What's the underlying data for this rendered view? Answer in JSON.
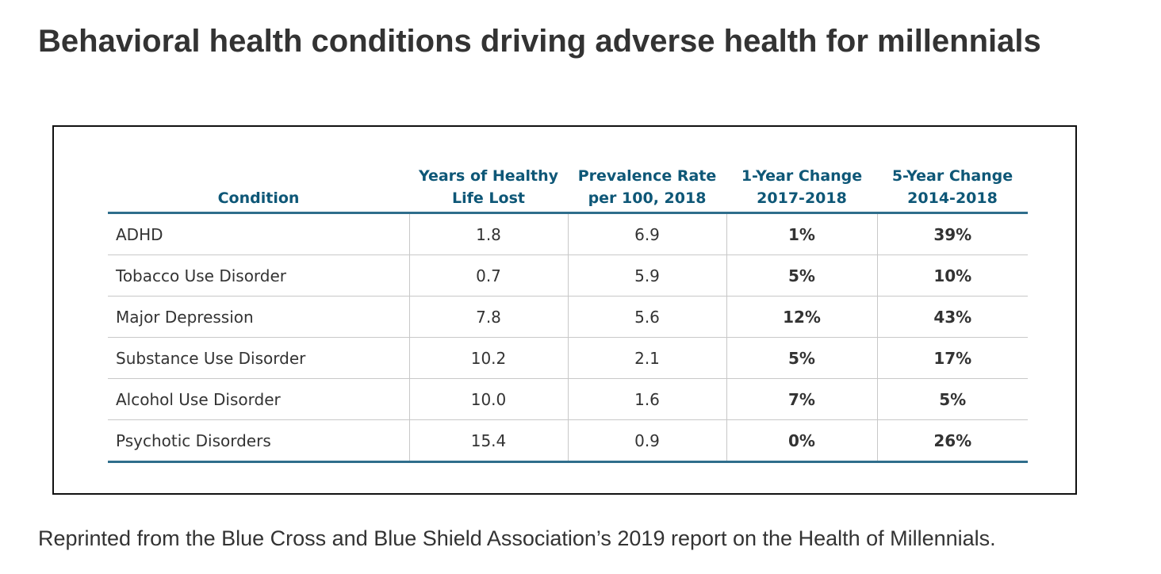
{
  "page": {
    "title": "Behavioral health conditions driving adverse health for millennials",
    "caption": "Reprinted from the Blue Cross and Blue Shield Association’s 2019 report on the Health of Millennials."
  },
  "table": {
    "headers": [
      [
        "Condition"
      ],
      [
        "Years of Healthy",
        "Life Lost"
      ],
      [
        "Prevalence Rate",
        "per 100, 2018"
      ],
      [
        "1-Year Change",
        "2017-2018"
      ],
      [
        "5-Year Change",
        "2014-2018"
      ]
    ],
    "rows": [
      [
        "ADHD",
        "1.8",
        "6.9",
        "1%",
        "39%"
      ],
      [
        "Tobacco Use Disorder",
        "0.7",
        "5.9",
        "5%",
        "10%"
      ],
      [
        "Major Depression",
        "7.8",
        "5.6",
        "12%",
        "43%"
      ],
      [
        "Substance Use Disorder",
        "10.2",
        "2.1",
        "5%",
        "17%"
      ],
      [
        "Alcohol Use Disorder",
        "10.0",
        "1.6",
        "7%",
        "5%"
      ],
      [
        "Psychotic Disorders",
        "15.4",
        "0.9",
        "0%",
        "26%"
      ]
    ]
  },
  "colors": {
    "header_text": "#0e5777",
    "header_rule": "#2f6e8c",
    "body_text": "#333333",
    "grid_line": "#c8c8c8"
  }
}
